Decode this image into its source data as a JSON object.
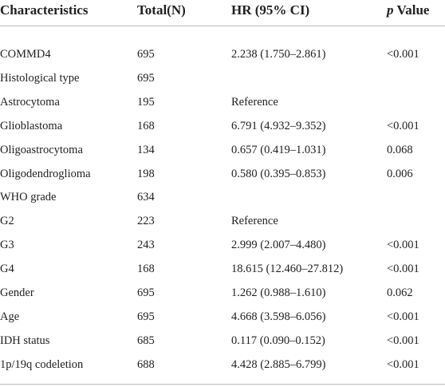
{
  "table": {
    "header": [
      "Characteristics",
      "Total(N)",
      "HR (95% CI)",
      {
        "symbol": "p",
        "word": "Value"
      }
    ],
    "rows": [
      [
        "COMMD4",
        695,
        "2.238 (1.750–2.861)",
        "<0.001"
      ],
      [
        "Histological type",
        695,
        null,
        null
      ],
      [
        "Astrocytoma",
        195,
        "Reference",
        null
      ],
      [
        "Glioblastoma",
        168,
        "6.791 (4.932–9.352)",
        "<0.001"
      ],
      [
        "Oligoastrocytoma",
        134,
        "0.657 (0.419–1.031)",
        "0.068"
      ],
      [
        "Oligodendroglioma",
        198,
        "0.580 (0.395–0.853)",
        "0.006"
      ],
      [
        "WHO grade",
        634,
        null,
        null
      ],
      [
        "G2",
        223,
        "Reference",
        null
      ],
      [
        "G3",
        243,
        "2.999 (2.007–4.480)",
        "<0.001"
      ],
      [
        "G4",
        168,
        "18.615 (12.460–27.812)",
        "<0.001"
      ],
      [
        "Gender",
        695,
        "1.262 (0.988–1.610)",
        "0.062"
      ],
      [
        "Age",
        695,
        "4.668 (3.598–6.056)",
        "<0.001"
      ],
      [
        "IDH status",
        685,
        "0.117 (0.090–0.152)",
        "<0.001"
      ],
      [
        "1p/19q codeletion",
        688,
        "4.428 (2.885–6.799)",
        "<0.001"
      ]
    ]
  }
}
